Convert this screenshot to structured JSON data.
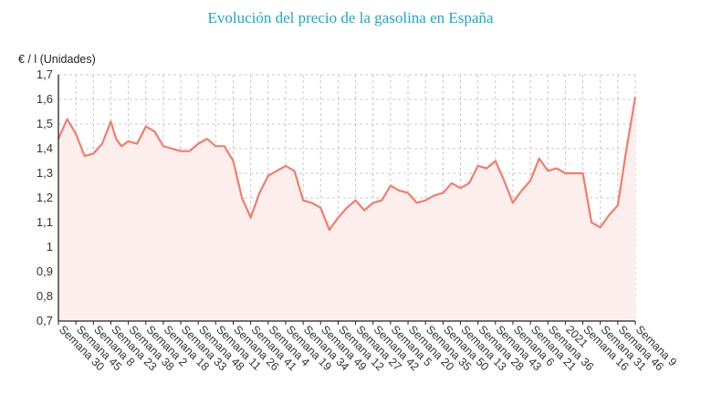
{
  "chart_data": {
    "type": "area",
    "title": "Evolución del precio de la gasolina en España",
    "ylabel": "€ / l (Unidades)",
    "xlabel": "",
    "ylim": [
      0.7,
      1.7
    ],
    "y_ticks": [
      "0,7",
      "0,8",
      "0,9",
      "1",
      "1,1",
      "1,2",
      "1,3",
      "1,4",
      "1,5",
      "1,6",
      "1,7"
    ],
    "x_tick_labels": [
      "Semana 30",
      "Semana 45",
      "Semana 8",
      "Semana 23",
      "Semana 38",
      "Semana 2",
      "Semana 18",
      "Semana 33",
      "Semana 48",
      "Semana 11",
      "Semana 26",
      "Semana 41",
      "Semana 4",
      "Semana 19",
      "Semana 34",
      "Semana 49",
      "Semana 12",
      "Semana 27",
      "Semana 42",
      "Semana 5",
      "Semana 20",
      "Semana 35",
      "Semana 50",
      "Semana 13",
      "Semana 28",
      "Semana 43",
      "Semana 6",
      "Semana 21",
      "Semana 36",
      "2021",
      "Semana 16",
      "Semana 31",
      "Semana 46",
      "Semana 9"
    ],
    "grid": true,
    "colors": {
      "line": "#f47c6a",
      "fill": "#fdeeee",
      "title": "#1aa9c2"
    },
    "series": [
      {
        "x": [
          0,
          0.5,
          1,
          1.5,
          2,
          2.5,
          3,
          3.3,
          3.6,
          4,
          4.5,
          5,
          5.5,
          6,
          6.5,
          7,
          7.5,
          8,
          8.5,
          9,
          9.5,
          10,
          10.5,
          11,
          11.5,
          12,
          12.5,
          13,
          13.5,
          14,
          14.5,
          15,
          15.5,
          16,
          16.5,
          17,
          17.5,
          18,
          18.5,
          19,
          19.5,
          20,
          20.5,
          21,
          21.5,
          22,
          22.5,
          23,
          23.5,
          24,
          24.5,
          25,
          25.5,
          26,
          26.5,
          27,
          27.5,
          28,
          28.5,
          29,
          29.5,
          30,
          30.5,
          31,
          31.5,
          32,
          32.5,
          33
        ],
        "values": [
          1.44,
          1.52,
          1.46,
          1.37,
          1.38,
          1.42,
          1.51,
          1.44,
          1.41,
          1.43,
          1.42,
          1.49,
          1.47,
          1.41,
          1.4,
          1.39,
          1.39,
          1.42,
          1.44,
          1.41,
          1.41,
          1.35,
          1.2,
          1.12,
          1.22,
          1.29,
          1.31,
          1.33,
          1.31,
          1.19,
          1.18,
          1.16,
          1.07,
          1.12,
          1.16,
          1.19,
          1.15,
          1.18,
          1.19,
          1.25,
          1.23,
          1.22,
          1.18,
          1.19,
          1.21,
          1.22,
          1.26,
          1.24,
          1.26,
          1.33,
          1.32,
          1.35,
          1.27,
          1.18,
          1.23,
          1.27,
          1.36,
          1.31,
          1.32,
          1.3,
          1.3,
          1.3,
          1.1,
          1.08,
          1.13,
          1.17,
          1.4,
          1.61
        ]
      }
    ]
  }
}
